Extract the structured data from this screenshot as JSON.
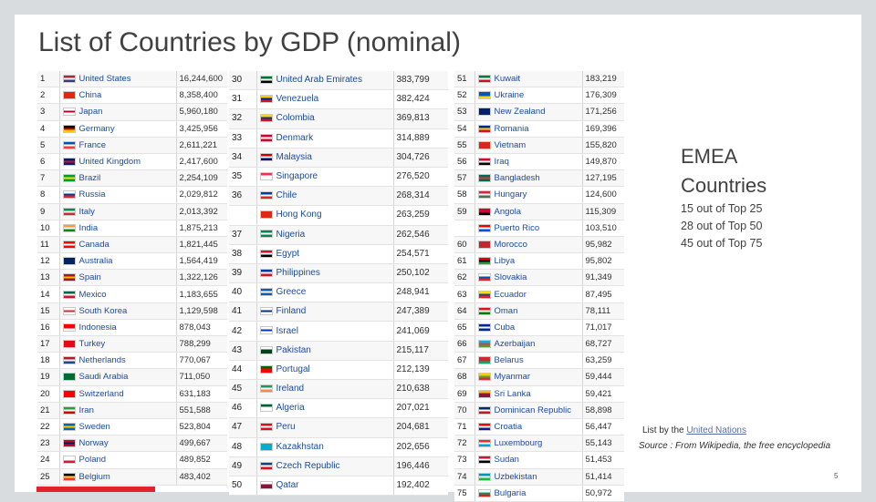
{
  "slide": {
    "title": "List of Countries by GDP (nominal)",
    "side_title": "EMEA Countries",
    "stats": [
      "15 out of Top 25",
      "28 out of Top 50",
      "45 out of Top 75"
    ],
    "source_line1_prefix": "List by the ",
    "source_line1_link": "United Nations",
    "source_line2": "Source : From Wikipedia, the free encyclopedia",
    "page_number": "5"
  },
  "tables": [
    {
      "rows": [
        {
          "rank": "1",
          "country": "United States",
          "value": "16,244,600",
          "flag": [
            "#b22234",
            "#ffffff",
            "#3c3b6e"
          ]
        },
        {
          "rank": "2",
          "country": "China",
          "value": "8,358,400",
          "flag": [
            "#de2910",
            "#de2910",
            "#de2910"
          ]
        },
        {
          "rank": "3",
          "country": "Japan",
          "value": "5,960,180",
          "flag": [
            "#ffffff",
            "#bc002d",
            "#ffffff"
          ]
        },
        {
          "rank": "4",
          "country": "Germany",
          "value": "3,425,956",
          "flag": [
            "#000000",
            "#dd0000",
            "#ffce00"
          ]
        },
        {
          "rank": "5",
          "country": "France",
          "value": "2,611,221",
          "flag": [
            "#0055a4",
            "#ffffff",
            "#ef4135"
          ]
        },
        {
          "rank": "6",
          "country": "United Kingdom",
          "value": "2,417,600",
          "flag": [
            "#012169",
            "#c8102e",
            "#012169"
          ]
        },
        {
          "rank": "7",
          "country": "Brazil",
          "value": "2,254,109",
          "flag": [
            "#009c3b",
            "#ffdf00",
            "#009c3b"
          ]
        },
        {
          "rank": "8",
          "country": "Russia",
          "value": "2,029,812",
          "flag": [
            "#ffffff",
            "#0039a6",
            "#d52b1e"
          ]
        },
        {
          "rank": "9",
          "country": "Italy",
          "value": "2,013,392",
          "flag": [
            "#009246",
            "#ffffff",
            "#ce2b37"
          ]
        },
        {
          "rank": "10",
          "country": "India",
          "value": "1,875,213",
          "flag": [
            "#ff9933",
            "#ffffff",
            "#138808"
          ]
        },
        {
          "rank": "11",
          "country": "Canada",
          "value": "1,821,445",
          "flag": [
            "#ff0000",
            "#ffffff",
            "#ff0000"
          ]
        },
        {
          "rank": "12",
          "country": "Australia",
          "value": "1,564,419",
          "flag": [
            "#012169",
            "#012169",
            "#012169"
          ]
        },
        {
          "rank": "13",
          "country": "Spain",
          "value": "1,322,126",
          "flag": [
            "#aa151b",
            "#f1bf00",
            "#aa151b"
          ]
        },
        {
          "rank": "14",
          "country": "Mexico",
          "value": "1,183,655",
          "flag": [
            "#006847",
            "#ffffff",
            "#ce1126"
          ]
        },
        {
          "rank": "15",
          "country": "South Korea",
          "value": "1,129,598",
          "flag": [
            "#ffffff",
            "#cd2e3a",
            "#ffffff"
          ]
        },
        {
          "rank": "16",
          "country": "Indonesia",
          "value": "878,043",
          "flag": [
            "#ff0000",
            "#ff0000",
            "#ffffff"
          ]
        },
        {
          "rank": "17",
          "country": "Turkey",
          "value": "788,299",
          "flag": [
            "#e30a17",
            "#e30a17",
            "#e30a17"
          ]
        },
        {
          "rank": "18",
          "country": "Netherlands",
          "value": "770,067",
          "flag": [
            "#ae1c28",
            "#ffffff",
            "#21468b"
          ]
        },
        {
          "rank": "19",
          "country": "Saudi Arabia",
          "value": "711,050",
          "flag": [
            "#006c35",
            "#006c35",
            "#006c35"
          ]
        },
        {
          "rank": "20",
          "country": "Switzerland",
          "value": "631,183",
          "flag": [
            "#ff0000",
            "#ff0000",
            "#ff0000"
          ]
        },
        {
          "rank": "21",
          "country": "Iran",
          "value": "551,588",
          "flag": [
            "#239f40",
            "#ffffff",
            "#da0000"
          ]
        },
        {
          "rank": "22",
          "country": "Sweden",
          "value": "523,804",
          "flag": [
            "#006aa7",
            "#fecc00",
            "#006aa7"
          ]
        },
        {
          "rank": "23",
          "country": "Norway",
          "value": "499,667",
          "flag": [
            "#ba0c2f",
            "#00205b",
            "#ba0c2f"
          ]
        },
        {
          "rank": "24",
          "country": "Poland",
          "value": "489,852",
          "flag": [
            "#ffffff",
            "#ffffff",
            "#dc143c"
          ]
        },
        {
          "rank": "25",
          "country": "Belgium",
          "value": "483,402",
          "flag": [
            "#000000",
            "#fdda24",
            "#ef3340"
          ]
        }
      ]
    },
    {
      "rows": [
        {
          "rank": "30",
          "country": "United Arab Emirates",
          "value": "383,799",
          "flag": [
            "#00732f",
            "#ffffff",
            "#000000"
          ]
        },
        {
          "rank": "31",
          "country": "Venezuela",
          "value": "382,424",
          "flag": [
            "#ffcc00",
            "#00247d",
            "#cf142b"
          ]
        },
        {
          "rank": "32",
          "country": "Colombia",
          "value": "369,813",
          "flag": [
            "#fcd116",
            "#003893",
            "#ce1126"
          ]
        },
        {
          "rank": "33",
          "country": "Denmark",
          "value": "314,889",
          "flag": [
            "#c60c30",
            "#ffffff",
            "#c60c30"
          ]
        },
        {
          "rank": "34",
          "country": "Malaysia",
          "value": "304,726",
          "flag": [
            "#cc0001",
            "#ffffff",
            "#010066"
          ]
        },
        {
          "rank": "35",
          "country": "Singapore",
          "value": "276,520",
          "flag": [
            "#ef3340",
            "#ffffff",
            "#ffffff"
          ]
        },
        {
          "rank": "36",
          "country": "Chile",
          "value": "268,314",
          "flag": [
            "#0039a6",
            "#ffffff",
            "#d52b1e"
          ]
        },
        {
          "rank": "",
          "country": "Hong Kong",
          "value": "263,259",
          "flag": [
            "#de2910",
            "#de2910",
            "#de2910"
          ]
        },
        {
          "rank": "37",
          "country": "Nigeria",
          "value": "262,546",
          "flag": [
            "#008751",
            "#ffffff",
            "#008751"
          ]
        },
        {
          "rank": "38",
          "country": "Egypt",
          "value": "254,571",
          "flag": [
            "#ce1126",
            "#ffffff",
            "#000000"
          ]
        },
        {
          "rank": "39",
          "country": "Philippines",
          "value": "250,102",
          "flag": [
            "#0038a8",
            "#ffffff",
            "#ce1126"
          ]
        },
        {
          "rank": "40",
          "country": "Greece",
          "value": "248,941",
          "flag": [
            "#0d5eaf",
            "#ffffff",
            "#0d5eaf"
          ]
        },
        {
          "rank": "41",
          "country": "Finland",
          "value": "247,389",
          "flag": [
            "#ffffff",
            "#003580",
            "#ffffff"
          ]
        },
        {
          "rank": "42",
          "country": "Israel",
          "value": "241,069",
          "flag": [
            "#ffffff",
            "#0038b8",
            "#ffffff"
          ]
        },
        {
          "rank": "43",
          "country": "Pakistan",
          "value": "215,117",
          "flag": [
            "#ffffff",
            "#01411c",
            "#01411c"
          ]
        },
        {
          "rank": "44",
          "country": "Portugal",
          "value": "212,139",
          "flag": [
            "#006600",
            "#ff0000",
            "#ff0000"
          ]
        },
        {
          "rank": "45",
          "country": "Ireland",
          "value": "210,638",
          "flag": [
            "#169b62",
            "#ffffff",
            "#ff883e"
          ]
        },
        {
          "rank": "46",
          "country": "Algeria",
          "value": "207,021",
          "flag": [
            "#006233",
            "#ffffff",
            "#ffffff"
          ]
        },
        {
          "rank": "47",
          "country": "Peru",
          "value": "204,681",
          "flag": [
            "#d91023",
            "#ffffff",
            "#d91023"
          ]
        },
        {
          "rank": "48",
          "country": "Kazakhstan",
          "value": "202,656",
          "flag": [
            "#00afca",
            "#00afca",
            "#00afca"
          ]
        },
        {
          "rank": "49",
          "country": "Czech Republic",
          "value": "196,446",
          "flag": [
            "#11457e",
            "#ffffff",
            "#d7141a"
          ]
        },
        {
          "rank": "50",
          "country": "Qatar",
          "value": "192,402",
          "flag": [
            "#ffffff",
            "#8a1538",
            "#8a1538"
          ]
        }
      ]
    },
    {
      "rows": [
        {
          "rank": "51",
          "country": "Kuwait",
          "value": "183,219",
          "flag": [
            "#007a3d",
            "#ffffff",
            "#ce1126"
          ]
        },
        {
          "rank": "52",
          "country": "Ukraine",
          "value": "176,309",
          "flag": [
            "#0057b7",
            "#0057b7",
            "#ffd700"
          ]
        },
        {
          "rank": "53",
          "country": "New Zealand",
          "value": "171,256",
          "flag": [
            "#012169",
            "#012169",
            "#012169"
          ]
        },
        {
          "rank": "54",
          "country": "Romania",
          "value": "169,396",
          "flag": [
            "#002b7f",
            "#fcd116",
            "#ce1126"
          ]
        },
        {
          "rank": "55",
          "country": "Vietnam",
          "value": "155,820",
          "flag": [
            "#da251d",
            "#da251d",
            "#da251d"
          ]
        },
        {
          "rank": "56",
          "country": "Iraq",
          "value": "149,870",
          "flag": [
            "#ce1126",
            "#ffffff",
            "#000000"
          ]
        },
        {
          "rank": "57",
          "country": "Bangladesh",
          "value": "127,195",
          "flag": [
            "#006a4e",
            "#f42a41",
            "#006a4e"
          ]
        },
        {
          "rank": "58",
          "country": "Hungary",
          "value": "124,600",
          "flag": [
            "#ce2939",
            "#ffffff",
            "#477050"
          ]
        },
        {
          "rank": "59",
          "country": "Angola",
          "value": "115,309",
          "flag": [
            "#cc092f",
            "#cc092f",
            "#000000"
          ]
        },
        {
          "rank": "",
          "country": "Puerto Rico",
          "value": "103,510",
          "flag": [
            "#ed0000",
            "#ffffff",
            "#0050f0"
          ]
        },
        {
          "rank": "60",
          "country": "Morocco",
          "value": "95,982",
          "flag": [
            "#c1272d",
            "#c1272d",
            "#c1272d"
          ]
        },
        {
          "rank": "61",
          "country": "Libya",
          "value": "95,802",
          "flag": [
            "#e70013",
            "#000000",
            "#239e46"
          ]
        },
        {
          "rank": "62",
          "country": "Slovakia",
          "value": "91,349",
          "flag": [
            "#ffffff",
            "#0b4ea2",
            "#ee1c25"
          ]
        },
        {
          "rank": "63",
          "country": "Ecuador",
          "value": "87,495",
          "flag": [
            "#ffdd00",
            "#034ea2",
            "#ed1c24"
          ]
        },
        {
          "rank": "64",
          "country": "Oman",
          "value": "78,111",
          "flag": [
            "#db161b",
            "#ffffff",
            "#008000"
          ]
        },
        {
          "rank": "65",
          "country": "Cuba",
          "value": "71,017",
          "flag": [
            "#002a8f",
            "#ffffff",
            "#002a8f"
          ]
        },
        {
          "rank": "66",
          "country": "Azerbaijan",
          "value": "68,727",
          "flag": [
            "#00b5e2",
            "#ef3340",
            "#509e2f"
          ]
        },
        {
          "rank": "67",
          "country": "Belarus",
          "value": "63,259",
          "flag": [
            "#d22730",
            "#d22730",
            "#00af66"
          ]
        },
        {
          "rank": "68",
          "country": "Myanmar",
          "value": "59,444",
          "flag": [
            "#fecb00",
            "#34b233",
            "#ea2839"
          ]
        },
        {
          "rank": "69",
          "country": "Sri Lanka",
          "value": "59,421",
          "flag": [
            "#ffb700",
            "#8d153a",
            "#8d153a"
          ]
        },
        {
          "rank": "70",
          "country": "Dominican Republic",
          "value": "58,898",
          "flag": [
            "#002d62",
            "#ffffff",
            "#ce1126"
          ]
        },
        {
          "rank": "71",
          "country": "Croatia",
          "value": "56,447",
          "flag": [
            "#ff0000",
            "#ffffff",
            "#171796"
          ]
        },
        {
          "rank": "72",
          "country": "Luxembourg",
          "value": "55,143",
          "flag": [
            "#ed2939",
            "#ffffff",
            "#00a1de"
          ]
        },
        {
          "rank": "73",
          "country": "Sudan",
          "value": "51,453",
          "flag": [
            "#d21034",
            "#ffffff",
            "#000000"
          ]
        },
        {
          "rank": "74",
          "country": "Uzbekistan",
          "value": "51,414",
          "flag": [
            "#0099b5",
            "#ffffff",
            "#1eb53a"
          ]
        },
        {
          "rank": "75",
          "country": "Bulgaria",
          "value": "50,972",
          "flag": [
            "#ffffff",
            "#00966e",
            "#d62612"
          ]
        }
      ]
    }
  ],
  "colors": {
    "accent_bar": "#e3212b",
    "title_text": "#404040",
    "link": "#1a4a9c"
  }
}
